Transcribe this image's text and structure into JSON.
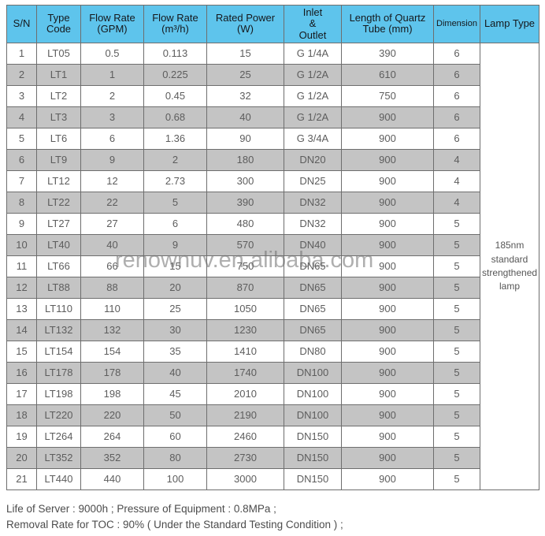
{
  "colors": {
    "header_bg": "#5ec4ec",
    "row_stripe": "#c4c4c4",
    "table_border": "#6e6e6e",
    "body_text": "#5d5d5d"
  },
  "watermark": "renownuv.en.alibaba.com",
  "table": {
    "headers": [
      "S/N",
      "Type\nCode",
      "Flow Rate\n(GPM)",
      "Flow Rate\n(m³/h)",
      "Rated Power\n(W)",
      "Inlet\n&\nOutlet",
      "Length of Quartz\nTube (mm)",
      "Dimension",
      "Lamp Type"
    ],
    "lamp_type": "185nm\nstandard\nstrengthened\nlamp",
    "rows": [
      {
        "sn": "1",
        "type_code": "LT05",
        "flow_gpm": "0.5",
        "flow_m3h": "0.113",
        "rated_power_w": "15",
        "inlet_outlet": "G 1/4A",
        "quartz_tube_length_mm": "390",
        "dimension": "6"
      },
      {
        "sn": "2",
        "type_code": "LT1",
        "flow_gpm": "1",
        "flow_m3h": "0.225",
        "rated_power_w": "25",
        "inlet_outlet": "G 1/2A",
        "quartz_tube_length_mm": "610",
        "dimension": "6"
      },
      {
        "sn": "3",
        "type_code": "LT2",
        "flow_gpm": "2",
        "flow_m3h": "0.45",
        "rated_power_w": "32",
        "inlet_outlet": "G 1/2A",
        "quartz_tube_length_mm": "750",
        "dimension": "6"
      },
      {
        "sn": "4",
        "type_code": "LT3",
        "flow_gpm": "3",
        "flow_m3h": "0.68",
        "rated_power_w": "40",
        "inlet_outlet": "G 1/2A",
        "quartz_tube_length_mm": "900",
        "dimension": "6"
      },
      {
        "sn": "5",
        "type_code": "LT6",
        "flow_gpm": "6",
        "flow_m3h": "1.36",
        "rated_power_w": "90",
        "inlet_outlet": "G 3/4A",
        "quartz_tube_length_mm": "900",
        "dimension": "6"
      },
      {
        "sn": "6",
        "type_code": "LT9",
        "flow_gpm": "9",
        "flow_m3h": "2",
        "rated_power_w": "180",
        "inlet_outlet": "DN20",
        "quartz_tube_length_mm": "900",
        "dimension": "4"
      },
      {
        "sn": "7",
        "type_code": "LT12",
        "flow_gpm": "12",
        "flow_m3h": "2.73",
        "rated_power_w": "300",
        "inlet_outlet": "DN25",
        "quartz_tube_length_mm": "900",
        "dimension": "4"
      },
      {
        "sn": "8",
        "type_code": "LT22",
        "flow_gpm": "22",
        "flow_m3h": "5",
        "rated_power_w": "390",
        "inlet_outlet": "DN32",
        "quartz_tube_length_mm": "900",
        "dimension": "4"
      },
      {
        "sn": "9",
        "type_code": "LT27",
        "flow_gpm": "27",
        "flow_m3h": "6",
        "rated_power_w": "480",
        "inlet_outlet": "DN32",
        "quartz_tube_length_mm": "900",
        "dimension": "5"
      },
      {
        "sn": "10",
        "type_code": "LT40",
        "flow_gpm": "40",
        "flow_m3h": "9",
        "rated_power_w": "570",
        "inlet_outlet": "DN40",
        "quartz_tube_length_mm": "900",
        "dimension": "5"
      },
      {
        "sn": "11",
        "type_code": "LT66",
        "flow_gpm": "66",
        "flow_m3h": "15",
        "rated_power_w": "750",
        "inlet_outlet": "DN65",
        "quartz_tube_length_mm": "900",
        "dimension": "5"
      },
      {
        "sn": "12",
        "type_code": "LT88",
        "flow_gpm": "88",
        "flow_m3h": "20",
        "rated_power_w": "870",
        "inlet_outlet": "DN65",
        "quartz_tube_length_mm": "900",
        "dimension": "5"
      },
      {
        "sn": "13",
        "type_code": "LT110",
        "flow_gpm": "110",
        "flow_m3h": "25",
        "rated_power_w": "1050",
        "inlet_outlet": "DN65",
        "quartz_tube_length_mm": "900",
        "dimension": "5"
      },
      {
        "sn": "14",
        "type_code": "LT132",
        "flow_gpm": "132",
        "flow_m3h": "30",
        "rated_power_w": "1230",
        "inlet_outlet": "DN65",
        "quartz_tube_length_mm": "900",
        "dimension": "5"
      },
      {
        "sn": "15",
        "type_code": "LT154",
        "flow_gpm": "154",
        "flow_m3h": "35",
        "rated_power_w": "1410",
        "inlet_outlet": "DN80",
        "quartz_tube_length_mm": "900",
        "dimension": "5"
      },
      {
        "sn": "16",
        "type_code": "LT178",
        "flow_gpm": "178",
        "flow_m3h": "40",
        "rated_power_w": "1740",
        "inlet_outlet": "DN100",
        "quartz_tube_length_mm": "900",
        "dimension": "5"
      },
      {
        "sn": "17",
        "type_code": "LT198",
        "flow_gpm": "198",
        "flow_m3h": "45",
        "rated_power_w": "2010",
        "inlet_outlet": "DN100",
        "quartz_tube_length_mm": "900",
        "dimension": "5"
      },
      {
        "sn": "18",
        "type_code": "LT220",
        "flow_gpm": "220",
        "flow_m3h": "50",
        "rated_power_w": "2190",
        "inlet_outlet": "DN100",
        "quartz_tube_length_mm": "900",
        "dimension": "5"
      },
      {
        "sn": "19",
        "type_code": "LT264",
        "flow_gpm": "264",
        "flow_m3h": "60",
        "rated_power_w": "2460",
        "inlet_outlet": "DN150",
        "quartz_tube_length_mm": "900",
        "dimension": "5"
      },
      {
        "sn": "20",
        "type_code": "LT352",
        "flow_gpm": "352",
        "flow_m3h": "80",
        "rated_power_w": "2730",
        "inlet_outlet": "DN150",
        "quartz_tube_length_mm": "900",
        "dimension": "5"
      },
      {
        "sn": "21",
        "type_code": "LT440",
        "flow_gpm": "440",
        "flow_m3h": "100",
        "rated_power_w": "3000",
        "inlet_outlet": "DN150",
        "quartz_tube_length_mm": "900",
        "dimension": "5"
      }
    ]
  },
  "footer": {
    "line1": "Life of Server : 9000h ; Pressure of Equipment : 0.8MPa ;",
    "line2": "Removal Rate for TOC : 90% ( Under the Standard Testing Condition ) ;"
  }
}
